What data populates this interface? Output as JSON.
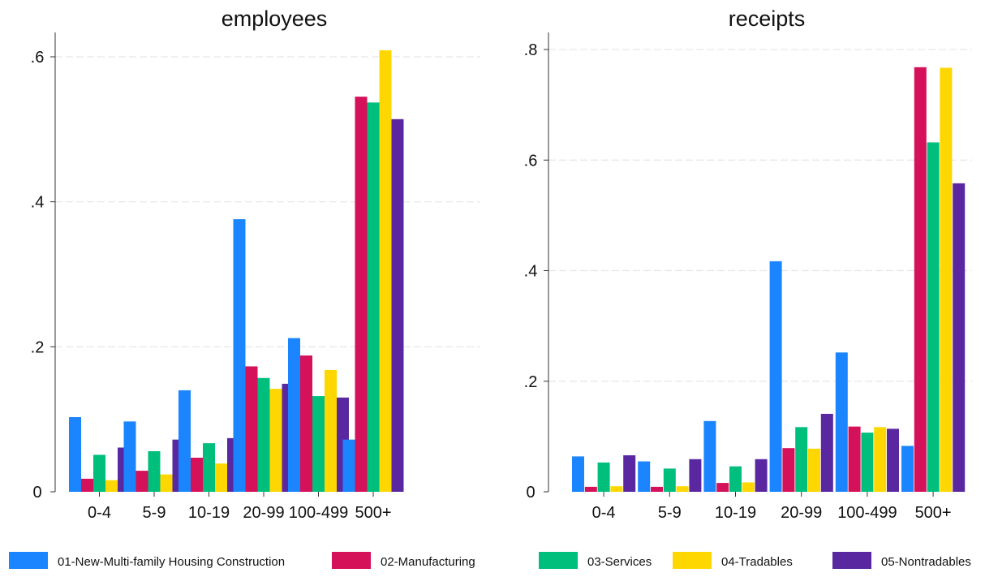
{
  "chart_data": [
    {
      "type": "bar",
      "title": "employees",
      "categories": [
        "0-4",
        "5-9",
        "10-19",
        "20-99",
        "100-499",
        "500+"
      ],
      "ylim": [
        0,
        0.63
      ],
      "yticks": [
        {
          "value": 0,
          "label": "0"
        },
        {
          "value": 0.2,
          "label": ".2"
        },
        {
          "value": 0.4,
          "label": ".4"
        },
        {
          "value": 0.6,
          "label": ".6"
        }
      ],
      "grid": true,
      "series": [
        {
          "name": "01-New-Multi-family Housing Construction",
          "values": [
            0.103,
            0.097,
            0.14,
            0.376,
            0.212,
            0.072
          ]
        },
        {
          "name": "02-Manufacturing",
          "values": [
            0.018,
            0.029,
            0.047,
            0.173,
            0.188,
            0.545
          ]
        },
        {
          "name": "03-Services",
          "values": [
            0.051,
            0.056,
            0.067,
            0.157,
            0.132,
            0.537
          ]
        },
        {
          "name": "04-Tradables",
          "values": [
            0.016,
            0.024,
            0.039,
            0.142,
            0.168,
            0.609
          ]
        },
        {
          "name": "05-Nontradables",
          "values": [
            0.061,
            0.072,
            0.074,
            0.149,
            0.13,
            0.514
          ]
        }
      ]
    },
    {
      "type": "bar",
      "title": "receipts",
      "categories": [
        "0-4",
        "5-9",
        "10-19",
        "20-99",
        "100-499",
        "500+"
      ],
      "ylim": [
        0,
        0.83
      ],
      "yticks": [
        {
          "value": 0,
          "label": "0"
        },
        {
          "value": 0.2,
          "label": ".2"
        },
        {
          "value": 0.4,
          "label": ".4"
        },
        {
          "value": 0.6,
          "label": ".6"
        },
        {
          "value": 0.8,
          "label": ".8"
        }
      ],
      "grid": true,
      "series": [
        {
          "name": "01-New-Multi-family Housing Construction",
          "values": [
            0.064,
            0.055,
            0.128,
            0.417,
            0.252,
            0.083
          ]
        },
        {
          "name": "02-Manufacturing",
          "values": [
            0.009,
            0.009,
            0.016,
            0.079,
            0.118,
            0.768
          ]
        },
        {
          "name": "03-Services",
          "values": [
            0.053,
            0.042,
            0.046,
            0.117,
            0.107,
            0.632
          ]
        },
        {
          "name": "04-Tradables",
          "values": [
            0.01,
            0.01,
            0.017,
            0.078,
            0.117,
            0.767
          ]
        },
        {
          "name": "05-Nontradables",
          "values": [
            0.066,
            0.059,
            0.059,
            0.141,
            0.114,
            0.558
          ]
        }
      ]
    }
  ],
  "legend": {
    "placement": "bottom",
    "items": [
      {
        "label": "01-New-Multi-family Housing Construction",
        "color": "#1a85ff"
      },
      {
        "label": "02-Manufacturing",
        "color": "#d41159"
      },
      {
        "label": "03-Services",
        "color": "#00bf7d"
      },
      {
        "label": "04-Tradables",
        "color": "#ffd700"
      },
      {
        "label": "05-Nontradables",
        "color": "#5928a0"
      }
    ]
  }
}
